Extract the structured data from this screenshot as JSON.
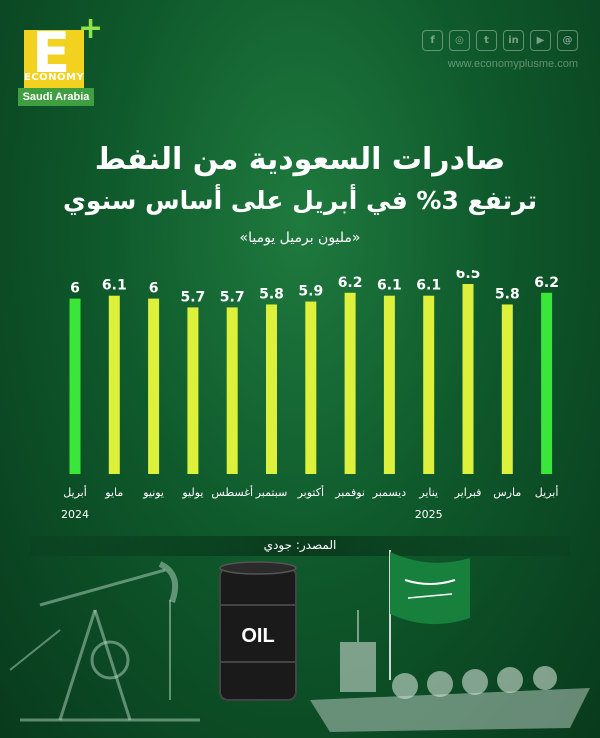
{
  "brand": {
    "logo_letter": "E",
    "logo_plus": "+",
    "logo_word": "ECONOMY",
    "logo_region": "Saudi Arabia",
    "website": "www.economyplusme.com",
    "socials": [
      "facebook-icon",
      "instagram-icon",
      "twitter-icon",
      "linkedin-icon",
      "youtube-icon",
      "threads-icon"
    ],
    "social_glyphs": [
      "f",
      "◎",
      "t",
      "in",
      "▶",
      "@"
    ]
  },
  "headline": {
    "title": "صادرات السعودية من النفط",
    "subtitle": "ترتفع 3% في أبريل على أساس سنوي",
    "unit": "«مليون برميل يوميا»"
  },
  "source": "المصدر: جودي",
  "barrel_label": "OIL",
  "colors": {
    "highlight_bar": "#39e639",
    "regular_bar": "#dcf03c",
    "value_label": "#ffffff",
    "category_label": "#ffffff"
  },
  "chart_data": {
    "type": "bar",
    "title": "صادرات السعودية من النفط",
    "ylabel": "«مليون برميل يوميا»",
    "ylim": [
      0,
      6.5
    ],
    "grid": false,
    "categories": [
      "أبريل",
      "مايو",
      "يونيو",
      "يوليو",
      "أغسطس",
      "سبتمبر",
      "أكتوبر",
      "نوفمبر",
      "ديسمبر",
      "يناير",
      "فبراير",
      "مارس",
      "أبريل"
    ],
    "value_labels": [
      "6",
      "6.1",
      "6",
      "5.7",
      "5.7",
      "5.8",
      "5.9",
      "6.2",
      "6.1",
      "6.1",
      "6.5",
      "5.8",
      "6.2"
    ],
    "values": [
      6,
      6.1,
      6,
      5.7,
      5.7,
      5.8,
      5.9,
      6.2,
      6.1,
      6.1,
      6.5,
      5.8,
      6.2
    ],
    "highlighted": [
      true,
      false,
      false,
      false,
      false,
      false,
      false,
      false,
      false,
      false,
      false,
      false,
      true
    ],
    "year_labels": [
      {
        "year": "2024",
        "category_index": 0
      },
      {
        "year": "2025",
        "category_index": 9
      }
    ]
  }
}
